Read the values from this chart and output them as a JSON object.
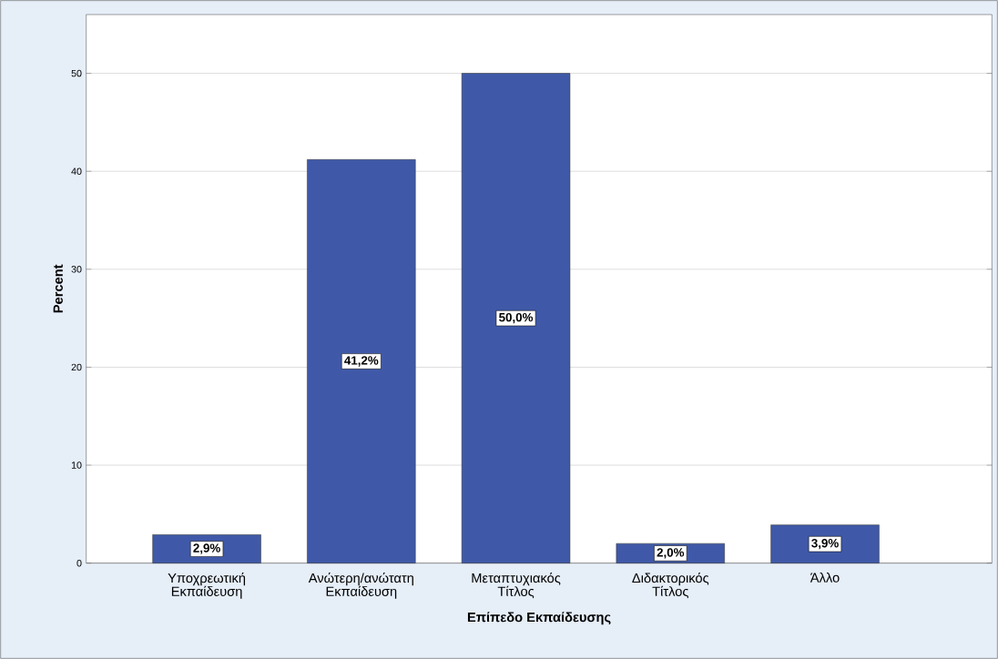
{
  "chart_data": {
    "type": "bar",
    "xlabel": "Επίπεδο Εκπαίδευσης",
    "ylabel": "Percent",
    "categories": [
      "Υποχρεωτική Εκπαίδευση",
      "Ανώτερη/ανώτατη Εκπαίδευση",
      "Μεταπτυχιακός Τίτλος",
      "Διδακτορικός Τίτλος",
      "Άλλο"
    ],
    "values": [
      2.9,
      41.2,
      50.0,
      2.0,
      3.9
    ],
    "value_labels": [
      "2,9%",
      "41,2%",
      "50,0%",
      "2,0%",
      "3,9%"
    ],
    "color": "#3f59a8",
    "ylim": [
      0,
      56
    ],
    "yticks": [
      0,
      10,
      20,
      30,
      40,
      50
    ],
    "grid": "y"
  }
}
